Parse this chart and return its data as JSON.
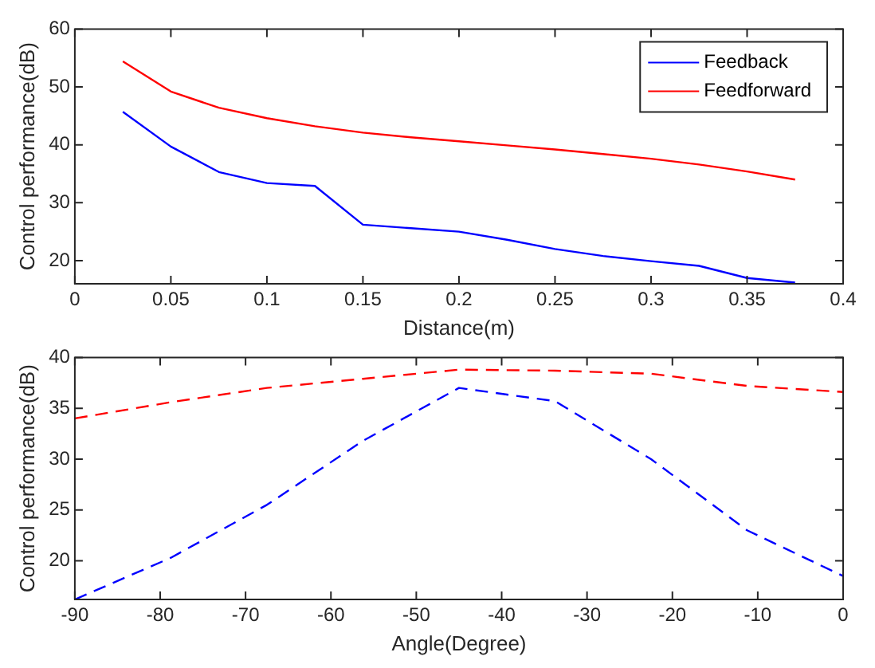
{
  "chart_data": [
    {
      "type": "line",
      "xlabel": "Distance(m)",
      "ylabel": "Control performance(dB)",
      "x": [
        0.025,
        0.05,
        0.075,
        0.1,
        0.125,
        0.15,
        0.175,
        0.2,
        0.225,
        0.25,
        0.275,
        0.3,
        0.325,
        0.35,
        0.375
      ],
      "series": [
        {
          "name": "Feedback",
          "color": "#0000ff",
          "values": [
            45.7,
            39.7,
            35.3,
            33.4,
            32.9,
            26.2,
            25.6,
            25.0,
            23.6,
            22.0,
            20.8,
            19.9,
            19.1,
            17.0,
            16.2
          ]
        },
        {
          "name": "Feedforward",
          "color": "#ff0000",
          "values": [
            54.4,
            49.2,
            46.4,
            44.6,
            43.2,
            42.1,
            41.3,
            40.6,
            39.9,
            39.2,
            38.4,
            37.6,
            36.6,
            35.4,
            34.0
          ]
        }
      ],
      "xlim": [
        0,
        0.4
      ],
      "xticks": [
        0,
        0.05,
        0.1,
        0.15,
        0.2,
        0.25,
        0.3,
        0.35,
        0.4
      ],
      "ylim": [
        16,
        60
      ],
      "yticks": [
        20,
        30,
        40,
        50,
        60
      ],
      "legend": "top right",
      "line_style": "solid"
    },
    {
      "type": "line",
      "xlabel": "Angle(Degree)",
      "ylabel": "Control performance(dB)",
      "x": [
        -90,
        -78.75,
        -67.5,
        -56.25,
        -45,
        -33.75,
        -22.5,
        -11.25,
        0
      ],
      "series": [
        {
          "color": "#0000ff",
          "values": [
            16.2,
            20.3,
            25.5,
            31.8,
            37.0,
            35.7,
            30.0,
            23.0,
            18.5
          ]
        },
        {
          "color": "#ff0000",
          "values": [
            34.0,
            35.6,
            37.0,
            37.9,
            38.8,
            38.7,
            38.4,
            37.2,
            36.6
          ]
        }
      ],
      "xlim": [
        -90,
        0
      ],
      "xticks": [
        -90,
        -80,
        -70,
        -60,
        -50,
        -40,
        -30,
        -20,
        -10,
        0
      ],
      "ylim": [
        16.2,
        40
      ],
      "yticks": [
        20,
        25,
        30,
        35,
        40
      ],
      "line_style": "dashed"
    }
  ]
}
